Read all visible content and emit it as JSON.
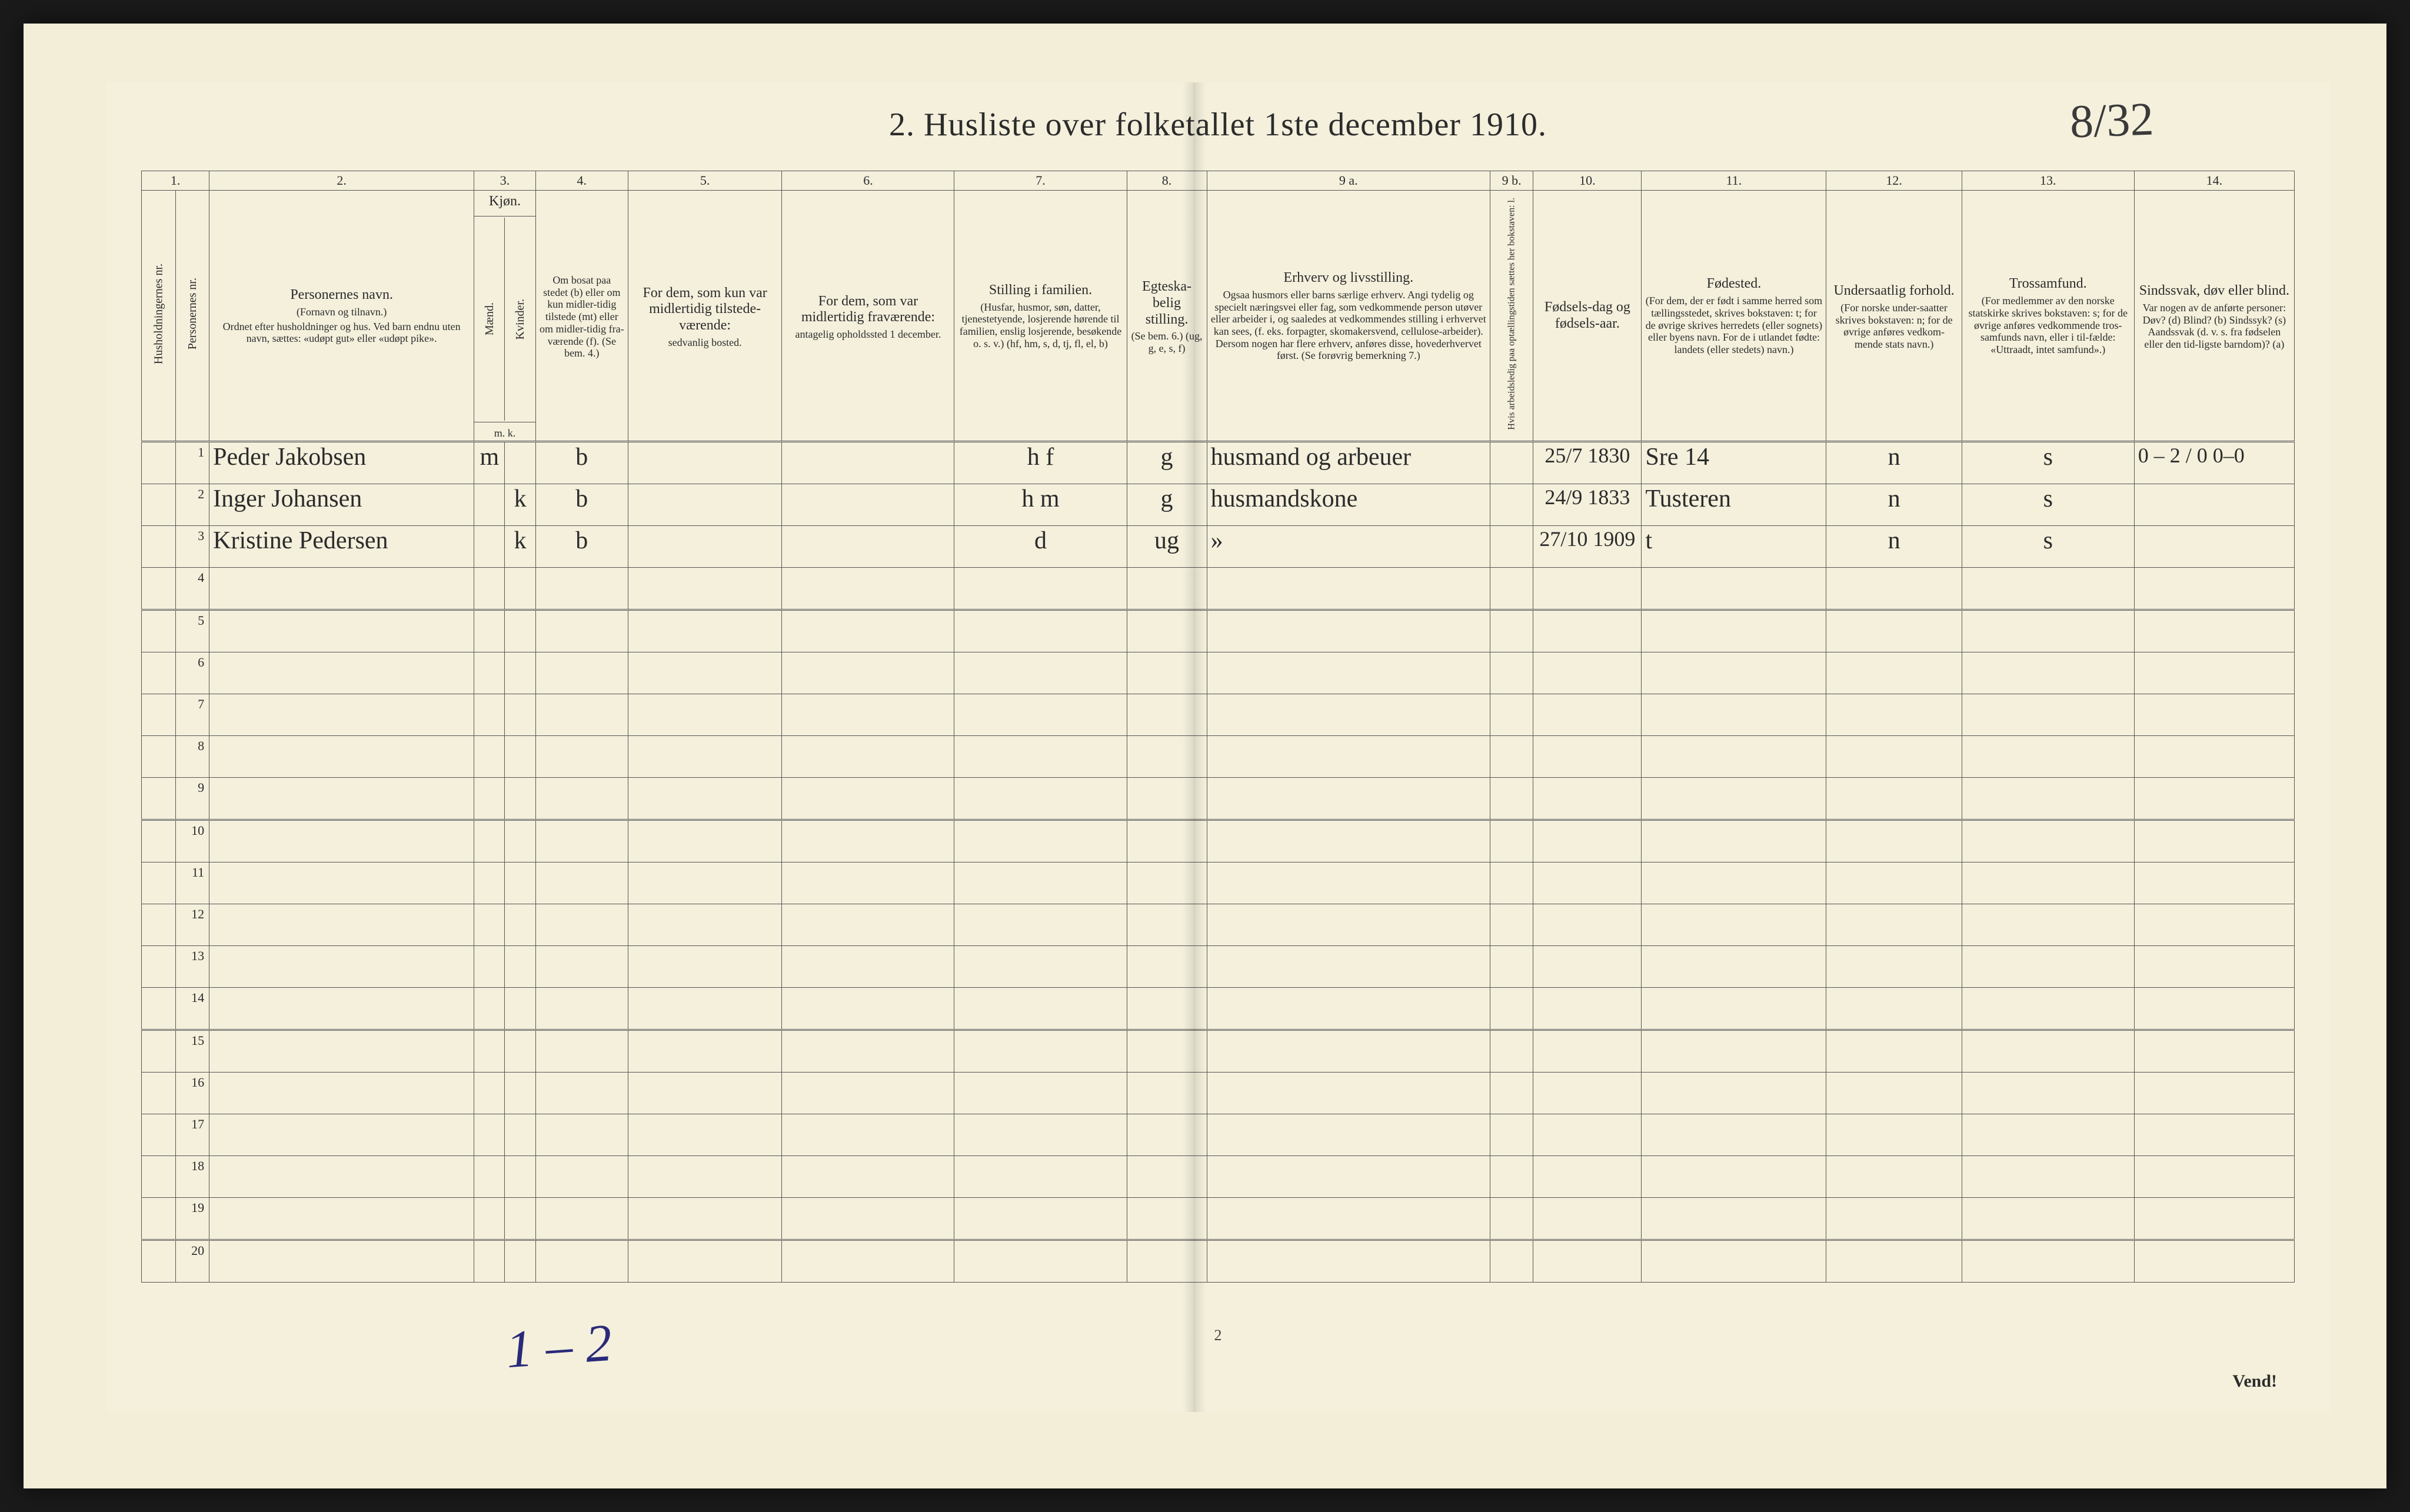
{
  "title": "2.  Husliste over folketallet 1ste december 1910.",
  "annotations": {
    "top_right": "8/32",
    "bottom_left": "1 – 2",
    "page_number_bottom": "2",
    "vend": "Vend!"
  },
  "colors": {
    "paper": "#f4f0dc",
    "ink": "#2c2c2c",
    "rule": "#555555",
    "pencil_blue": "#2a2a7a",
    "scan_bg": "#1a1a1a"
  },
  "typography": {
    "title_fontsize_pt": 42,
    "header_fontsize_pt": 16,
    "header_small_fontsize_pt": 13,
    "body_fontsize_pt": 22,
    "cursive_fontsize_pt": 32
  },
  "column_numbers": [
    "1.",
    "2.",
    "3.",
    "4.",
    "5.",
    "6.",
    "7.",
    "8.",
    "9 a.",
    "9 b.",
    "10.",
    "11.",
    "12.",
    "13.",
    "14."
  ],
  "headers": {
    "c1a": "Husholdningernes nr.",
    "c1b": "Personernes nr.",
    "c2_main": "Personernes navn.",
    "c2_sub1": "(Fornavn og tilnavn.)",
    "c2_sub2": "Ordnet efter husholdninger og hus. Ved barn endnu uten navn, sættes: «udøpt gut» eller «udøpt pike».",
    "c3_main": "Kjøn.",
    "c3_m": "Mænd.",
    "c3_k": "Kvinder.",
    "c3_sub": "m.  k.",
    "c4_main": "Om bosat paa stedet (b) eller om kun midler-tidig tilstede (mt) eller om midler-tidig fra-værende (f). (Se bem. 4.)",
    "c5_main": "For dem, som kun var midlertidig tilstede-værende:",
    "c5_sub": "sedvanlig bosted.",
    "c6_main": "For dem, som var midlertidig fraværende:",
    "c6_sub": "antagelig opholdssted 1 december.",
    "c7_main": "Stilling i familien.",
    "c7_sub": "(Husfar, husmor, søn, datter, tjenestetyende, losjerende hørende til familien, enslig losjerende, besøkende o. s. v.) (hf, hm, s, d, tj, fl, el, b)",
    "c8_main": "Egteska-belig stilling.",
    "c8_sub": "(Se bem. 6.) (ug, g, e, s, f)",
    "c9a_main": "Erhverv og livsstilling.",
    "c9a_sub": "Ogsaa husmors eller barns særlige erhverv. Angi tydelig og specielt næringsvei eller fag, som vedkommende person utøver eller arbeider i, og saaledes at vedkommendes stilling i erhvervet kan sees, (f. eks. forpagter, skomakersvend, cellulose-arbeider). Dersom nogen har flere erhverv, anføres disse, hovederhvervet først. (Se forøvrig bemerkning 7.)",
    "c9b": "Hvis arbeidsledig paa optællingstiden sættes her bokstaven: l.",
    "c10_main": "Fødsels-dag og fødsels-aar.",
    "c11_main": "Fødested.",
    "c11_sub": "(For dem, der er født i samme herred som tællingsstedet, skrives bokstaven: t; for de øvrige skrives herredets (eller sognets) eller byens navn. For de i utlandet fødte: landets (eller stedets) navn.)",
    "c12_main": "Undersaatlig forhold.",
    "c12_sub": "(For norske under-saatter skrives bokstaven: n; for de øvrige anføres vedkom-mende stats navn.)",
    "c13_main": "Trossamfund.",
    "c13_sub": "(For medlemmer av den norske statskirke skrives bokstaven: s; for de øvrige anføres vedkommende tros-samfunds navn, eller i til-fælde: «Uttraadt, intet samfund».)",
    "c14_main": "Sindssvak, døv eller blind.",
    "c14_sub": "Var nogen av de anførte personer: Døv? (d)  Blind? (b)  Sindssyk? (s)  Aandssvak (d. v. s. fra fødselen eller den tid-ligste barndom)? (a)"
  },
  "rows": [
    {
      "num": "1",
      "name": "Peder Jakobsen",
      "sex_m": "m",
      "sex_k": "",
      "bosat": "b",
      "col5": "",
      "col6": "",
      "familien": "h f",
      "egte": "g",
      "erhverv": "husmand og arbeuer",
      "ledig": "",
      "fodsel": "25/7 1830",
      "fodested": "Sre   14",
      "under": "n",
      "tros": "s",
      "sinds": "0 – 2 / 0  0–0"
    },
    {
      "num": "2",
      "name": "Inger Johansen",
      "sex_m": "",
      "sex_k": "k",
      "bosat": "b",
      "col5": "",
      "col6": "",
      "familien": "h m",
      "egte": "g",
      "erhverv": "husmandskone",
      "ledig": "",
      "fodsel": "24/9 1833",
      "fodested": "Tusteren",
      "under": "n",
      "tros": "s",
      "sinds": ""
    },
    {
      "num": "3",
      "name": "Kristine Pedersen",
      "sex_m": "",
      "sex_k": "k",
      "bosat": "b",
      "col5": "",
      "col6": "",
      "familien": "d",
      "egte": "ug",
      "erhverv": "»",
      "ledig": "",
      "fodsel": "27/10 1909",
      "fodested": "t",
      "under": "n",
      "tros": "s",
      "sinds": ""
    }
  ],
  "empty_row_numbers": [
    "4",
    "5",
    "6",
    "7",
    "8",
    "9",
    "10",
    "11",
    "12",
    "13",
    "14",
    "15",
    "16",
    "17",
    "18",
    "19",
    "20"
  ]
}
